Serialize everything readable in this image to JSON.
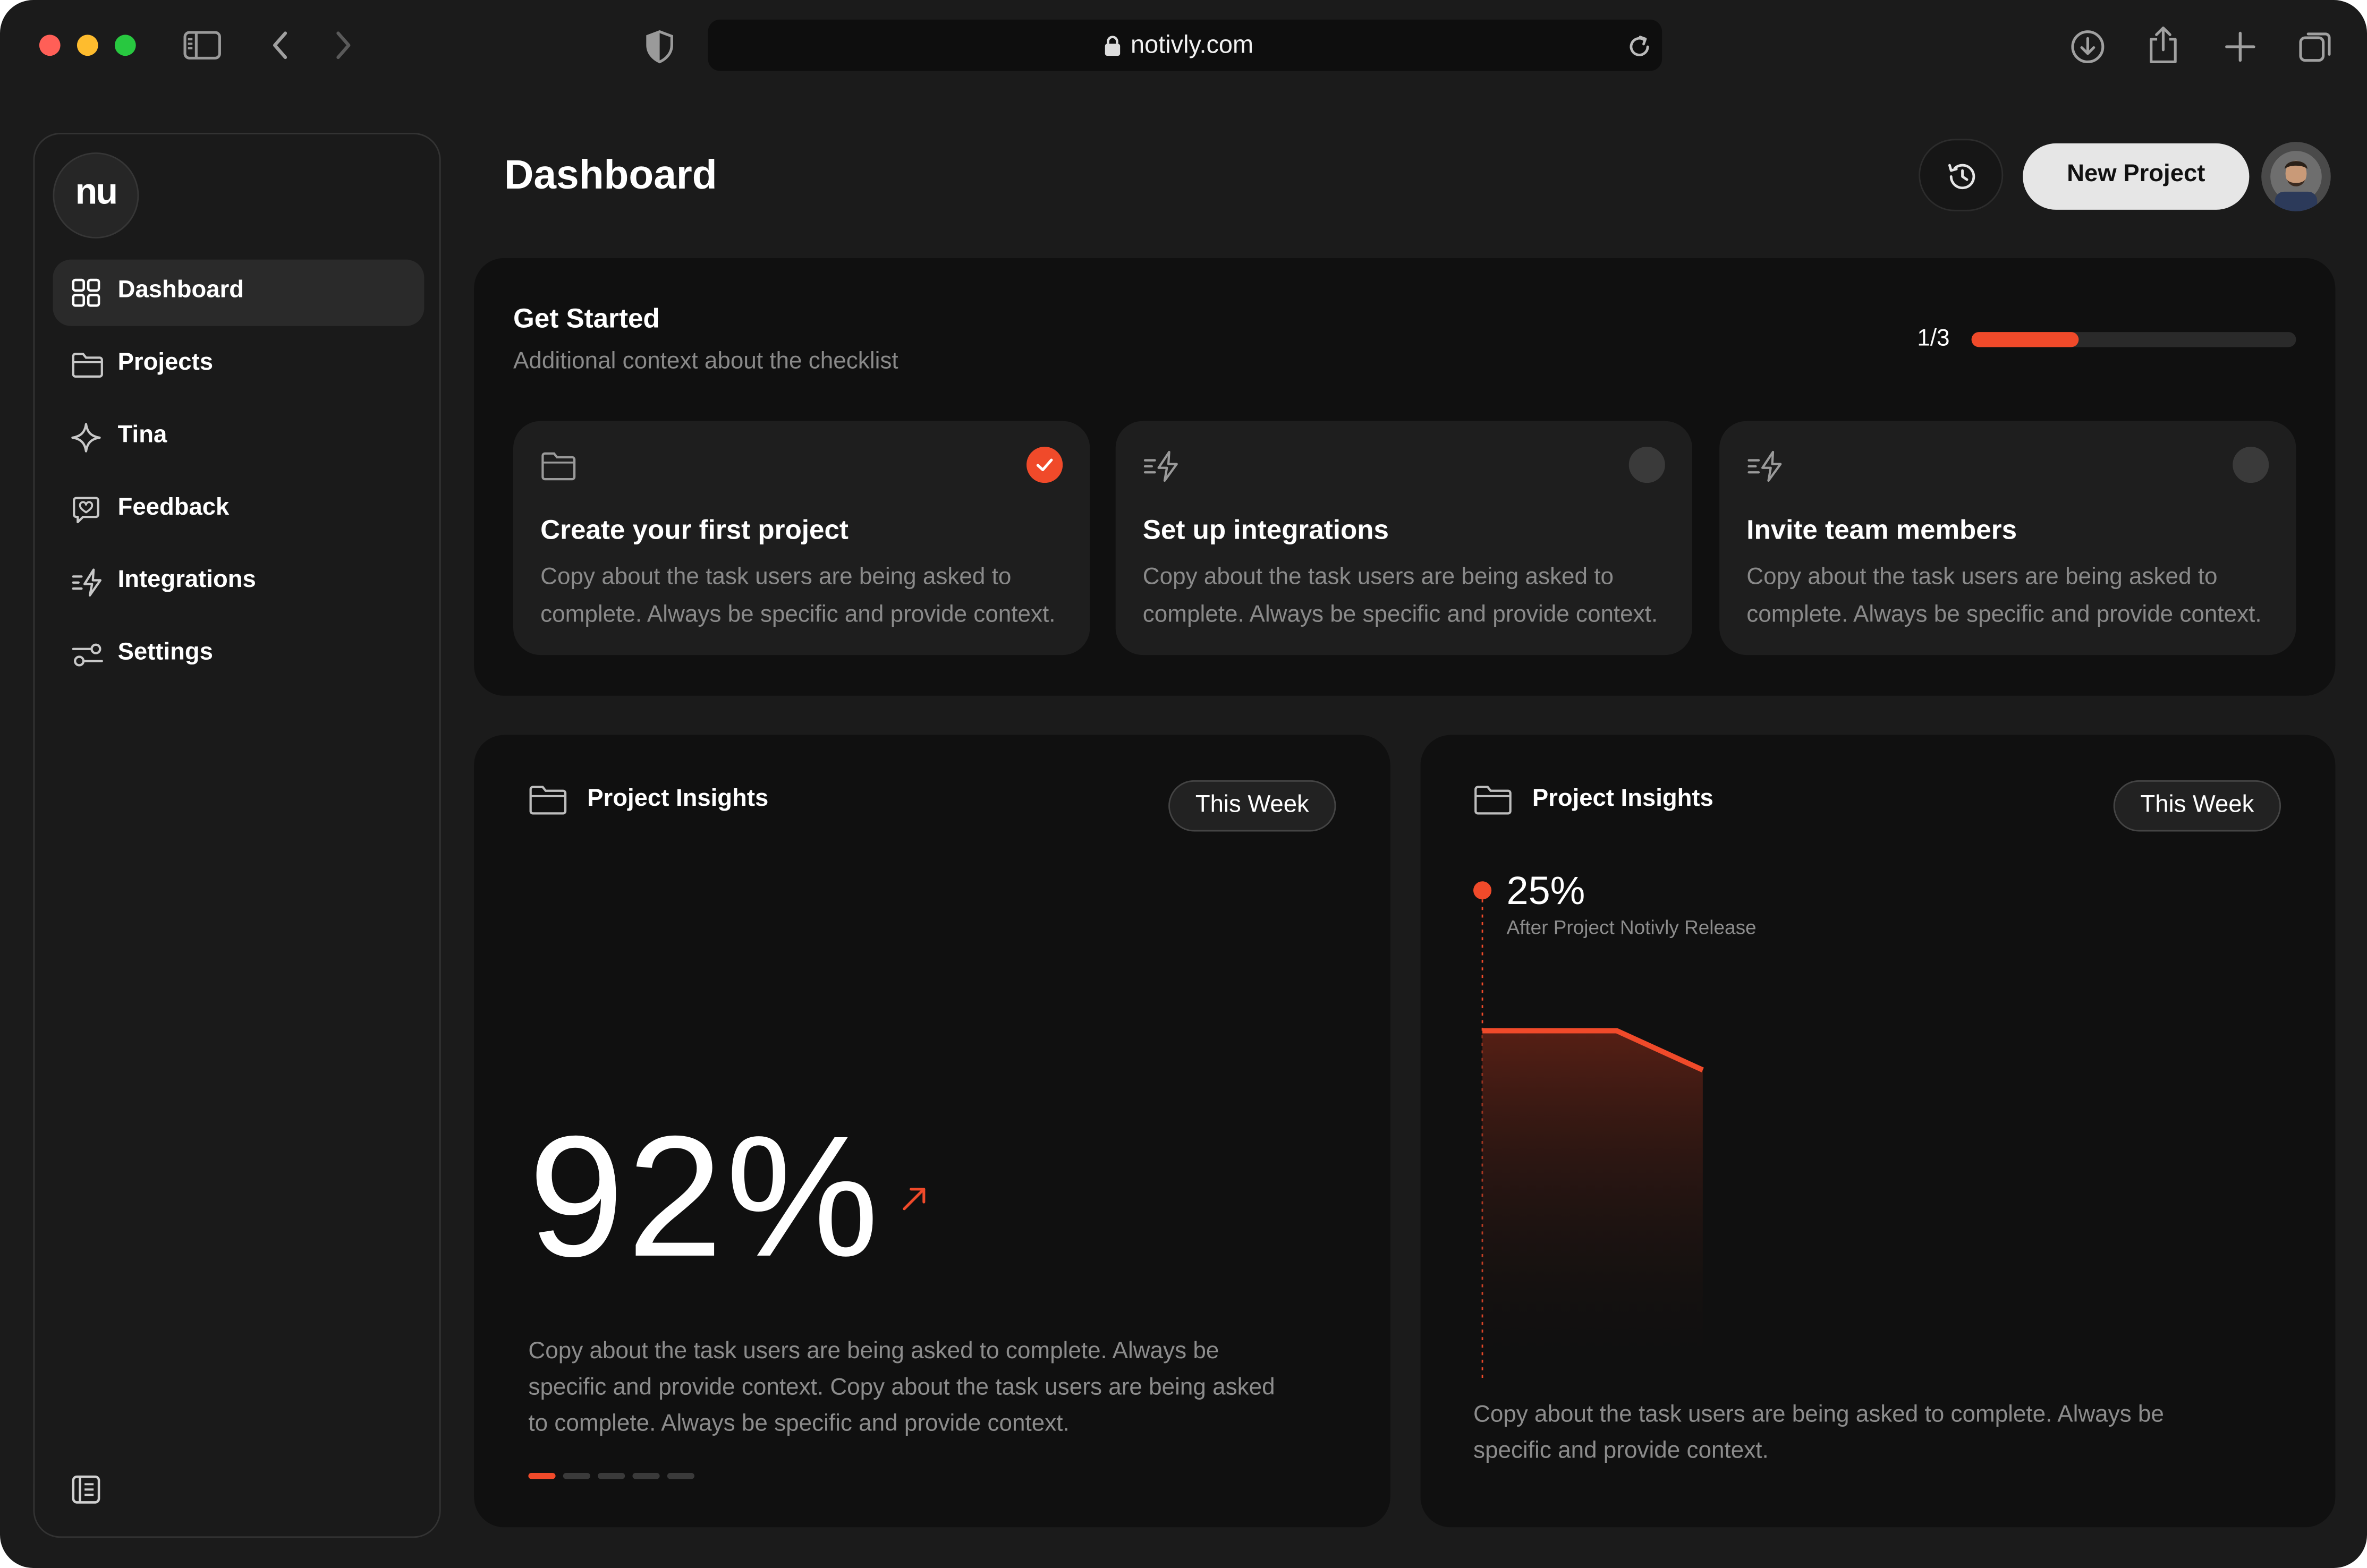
{
  "browser": {
    "url": "notivly.com"
  },
  "sidebar": {
    "logo": "nu",
    "items": [
      {
        "label": "Dashboard",
        "icon": "grid-icon",
        "active": true
      },
      {
        "label": "Projects",
        "icon": "folder-icon"
      },
      {
        "label": "Tina",
        "icon": "sparkle-icon"
      },
      {
        "label": "Feedback",
        "icon": "feedback-icon"
      },
      {
        "label": "Integrations",
        "icon": "integrations-icon"
      },
      {
        "label": "Settings",
        "icon": "settings-icon"
      }
    ]
  },
  "header": {
    "title": "Dashboard",
    "new_project_label": "New Project"
  },
  "get_started": {
    "title": "Get Started",
    "subtitle": "Additional context about the checklist",
    "progress_label": "1/3",
    "progress_fraction": 0.33,
    "cards": [
      {
        "title": "Create your first project",
        "desc_line1": "Copy about the task users are being asked to",
        "desc_line2": "complete. Always be specific and provide context.",
        "done": true
      },
      {
        "title": "Set up integrations",
        "desc_line1": "Copy about the task users are being asked to",
        "desc_line2": "complete. Always be specific and provide context.",
        "done": false
      },
      {
        "title": "Invite team members",
        "desc_line1": "Copy about the task users are being asked to",
        "desc_line2": "complete. Always be specific and provide context.",
        "done": false
      }
    ]
  },
  "insights_left": {
    "title": "Project Insights",
    "period": "This Week",
    "value": "92%",
    "desc_line1": "Copy about the task users are being asked to complete. Always be",
    "desc_line2": "specific and provide context. Copy about the task users are being asked",
    "desc_line3": "to complete. Always be specific and provide context.",
    "pagination_count": 5,
    "pagination_active": 0
  },
  "insights_right": {
    "title": "Project Insights",
    "period": "This Week",
    "marker_value": "25%",
    "marker_label": "After Project Notivly Release",
    "desc_line1": "Copy about the task users are being asked to complete. Always be",
    "desc_line2": "specific and provide context."
  },
  "colors": {
    "accent": "#f04a2a",
    "background": "#1b1b1b",
    "panel": "#101010",
    "card": "#1e1e1e"
  }
}
